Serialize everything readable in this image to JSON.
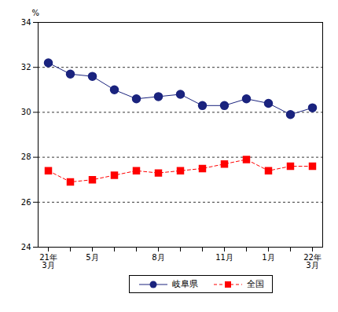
{
  "chart_data": {
    "type": "line",
    "y_label": "%",
    "categories": [
      "21年\n3月",
      null,
      "5月",
      null,
      null,
      "8月",
      null,
      null,
      "11月",
      null,
      "1月",
      null,
      "22年\n3月"
    ],
    "series": [
      {
        "name": "岐阜県",
        "color": "#1a237e",
        "marker": "circle",
        "line_style": "solid",
        "values": [
          32.2,
          31.7,
          31.6,
          31.0,
          30.6,
          30.7,
          30.8,
          30.3,
          30.3,
          30.6,
          30.4,
          29.9,
          30.2
        ]
      },
      {
        "name": "全国",
        "color": "#ff0000",
        "marker": "square",
        "line_style": "dashed",
        "values": [
          27.4,
          26.9,
          27.0,
          27.2,
          27.4,
          27.3,
          27.4,
          27.5,
          27.7,
          27.9,
          27.4,
          27.6,
          27.6
        ]
      }
    ],
    "ylim": [
      24,
      34
    ],
    "yticks": [
      24,
      26,
      28,
      30,
      32,
      34
    ],
    "grid": true,
    "legend": "bottom"
  }
}
